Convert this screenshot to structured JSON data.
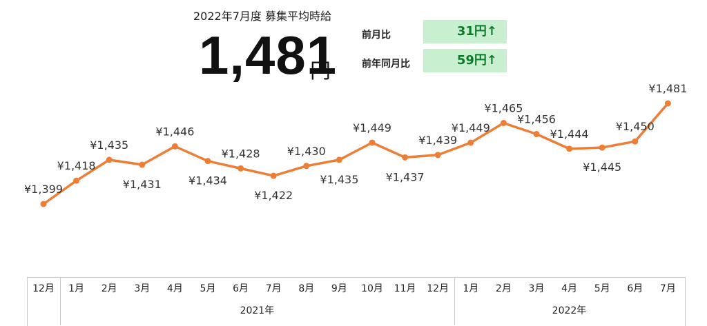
{
  "header": {
    "title": "2022年7月度 募集平均時給",
    "value": "1,481",
    "unit": "円"
  },
  "comparisons": [
    {
      "label": "前月比",
      "value": "31円↑"
    },
    {
      "label": "前年同月比",
      "value": "59円↑"
    }
  ],
  "colors": {
    "line": "#ee7d35",
    "compare_bg": "#c8efcf",
    "compare_text": "#0d7a2a"
  },
  "chart_data": {
    "type": "line",
    "title": "2022年7月度 募集平均時給",
    "categories": [
      "12月",
      "1月",
      "2月",
      "3月",
      "4月",
      "5月",
      "6月",
      "7月",
      "8月",
      "9月",
      "10月",
      "11月",
      "12月",
      "1月",
      "2月",
      "3月",
      "4月",
      "5月",
      "6月",
      "7月"
    ],
    "values": [
      1399,
      1418,
      1435,
      1431,
      1446,
      1434,
      1428,
      1422,
      1430,
      1435,
      1449,
      1437,
      1439,
      1449,
      1465,
      1456,
      1444,
      1445,
      1450,
      1481
    ],
    "labels": [
      "¥1,399",
      "¥1,418",
      "¥1,435",
      "¥1,431",
      "¥1,446",
      "¥1,434",
      "¥1,428",
      "¥1,422",
      "¥1,430",
      "¥1,435",
      "¥1,449",
      "¥1,437",
      "¥1,439",
      "¥1,449",
      "¥1,465",
      "¥1,456",
      "¥1,444",
      "¥1,445",
      "¥1,450",
      "¥1,481"
    ],
    "label_position": [
      "above",
      "above",
      "above",
      "below",
      "above",
      "below",
      "above",
      "below",
      "above",
      "below",
      "above",
      "below",
      "above",
      "above",
      "above",
      "above",
      "above",
      "below",
      "above",
      "above"
    ],
    "year_groups": [
      {
        "label": "",
        "start": 0,
        "end": 0
      },
      {
        "label": "2021年",
        "start": 1,
        "end": 12
      },
      {
        "label": "2022年",
        "start": 13,
        "end": 19
      }
    ],
    "grid": false,
    "legend": "none"
  }
}
